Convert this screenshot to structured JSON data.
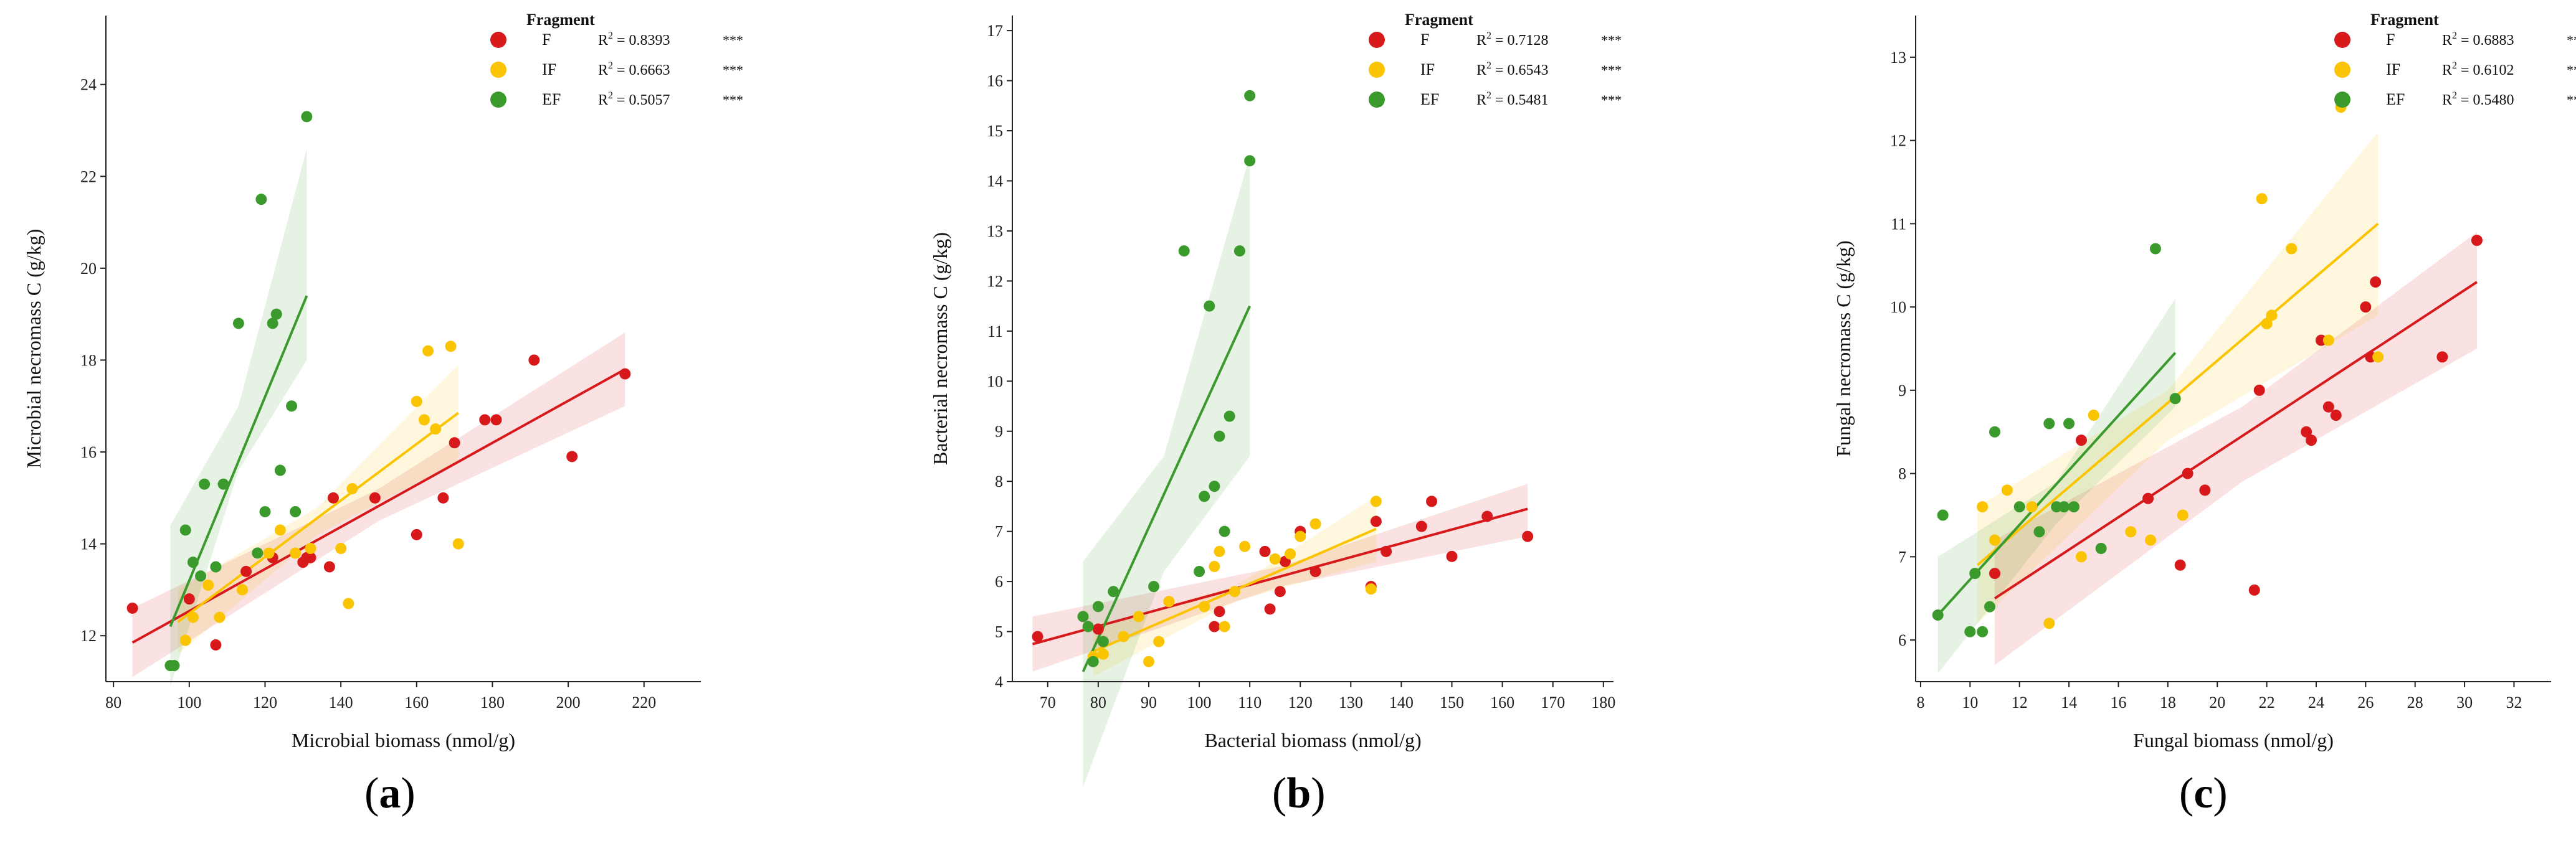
{
  "colors": {
    "F": "#d7191c",
    "IF": "#fbc400",
    "EF": "#3a9a2c"
  },
  "panel_labels": [
    {
      "open": "(",
      "letter": "a",
      "close": ")"
    },
    {
      "open": "(",
      "letter": "b",
      "close": ")"
    },
    {
      "open": "(",
      "letter": "c",
      "close": ")"
    }
  ],
  "chart_data": [
    {
      "type": "scatter",
      "title": "",
      "xlabel": "Microbial biomass (nmol/g)",
      "ylabel": "Microbial necromass C (g/kg)",
      "xlim": [
        78,
        235
      ],
      "ylim": [
        11,
        25.5
      ],
      "xticks": [
        80,
        100,
        120,
        140,
        160,
        180,
        200,
        220
      ],
      "yticks": [
        12,
        14,
        16,
        18,
        20,
        22,
        24
      ],
      "legend_title": "Fragment",
      "legend_position": "top-right",
      "series": [
        {
          "name": "F",
          "r2_prefix": "R",
          "r2_value": " = 0.8393",
          "sig": "***",
          "fit": {
            "x": [
              85,
              215
            ],
            "y": [
              11.85,
              17.8
            ]
          },
          "band": {
            "x": [
              85,
              150,
              215
            ],
            "upper": [
              12.6,
              15.2,
              18.6
            ],
            "lower": [
              11.1,
              14.5,
              17.0
            ]
          },
          "x": [
            85,
            100,
            107,
            115,
            122,
            130,
            131,
            132,
            137,
            138,
            149,
            160,
            167,
            170,
            178,
            181,
            191,
            201,
            215
          ],
          "y": [
            12.6,
            12.8,
            11.8,
            13.4,
            13.7,
            13.6,
            13.7,
            13.7,
            13.5,
            15.0,
            15.0,
            14.2,
            15.0,
            16.2,
            16.7,
            16.7,
            18.0,
            15.9,
            17.7
          ]
        },
        {
          "name": "IF",
          "r2_prefix": "R",
          "r2_value": " = 0.6663",
          "sig": "***",
          "fit": {
            "x": [
              97,
              171
            ],
            "y": [
              12.3,
              16.85
            ]
          },
          "band": {
            "x": [
              97,
              134,
              171
            ],
            "upper": [
              13.0,
              14.8,
              17.9
            ],
            "lower": [
              11.6,
              14.2,
              15.8
            ]
          },
          "x": [
            99,
            101,
            105,
            108,
            114,
            121,
            124,
            128,
            132,
            140,
            142,
            143,
            160,
            162,
            163,
            165,
            169,
            171
          ],
          "y": [
            11.9,
            12.4,
            13.1,
            12.4,
            13.0,
            13.8,
            14.3,
            13.8,
            13.9,
            13.9,
            12.7,
            15.2,
            17.1,
            16.7,
            18.2,
            16.5,
            18.3,
            14.0
          ]
        },
        {
          "name": "EF",
          "r2_prefix": "R",
          "r2_value": " = 0.5057",
          "sig": "***",
          "fit": {
            "x": [
              95,
              131
            ],
            "y": [
              12.2,
              19.4
            ]
          },
          "band": {
            "x": [
              95,
              113,
              131
            ],
            "upper": [
              14.4,
              17.0,
              22.6
            ],
            "lower": [
              10.9,
              15.6,
              18.0
            ]
          },
          "x": [
            95,
            96,
            99,
            101,
            103,
            104,
            107,
            109,
            113,
            118,
            119,
            120,
            122,
            123,
            124,
            127,
            128,
            131
          ],
          "y": [
            11.35,
            11.35,
            14.3,
            13.6,
            13.3,
            15.3,
            13.5,
            15.3,
            18.8,
            13.8,
            21.5,
            14.7,
            18.8,
            19.0,
            15.6,
            17.0,
            14.7,
            23.3
          ]
        }
      ]
    },
    {
      "type": "scatter",
      "title": "",
      "xlabel": "Bacterial biomass (nmol/g)",
      "ylabel": "Bacterial necromass C (g/kg)",
      "xlim": [
        63,
        182
      ],
      "ylim": [
        4,
        17.3
      ],
      "xticks": [
        70,
        80,
        90,
        100,
        110,
        120,
        130,
        140,
        150,
        160,
        170,
        180
      ],
      "yticks": [
        4,
        5,
        6,
        7,
        8,
        9,
        10,
        11,
        12,
        13,
        14,
        15,
        16,
        17
      ],
      "legend_title": "Fragment",
      "legend_position": "top-right",
      "series": [
        {
          "name": "F",
          "r2_prefix": "R",
          "r2_value": " = 0.7128",
          "sig": "***",
          "fit": {
            "x": [
              67,
              165
            ],
            "y": [
              4.75,
              7.45
            ]
          },
          "band": {
            "x": [
              67,
              116,
              165
            ],
            "upper": [
              5.3,
              6.3,
              7.95
            ],
            "lower": [
              4.2,
              5.9,
              6.9
            ]
          },
          "x": [
            68,
            80,
            103,
            104,
            113,
            114,
            116,
            117,
            120,
            123,
            134,
            135,
            137,
            144,
            146,
            150,
            157,
            165
          ],
          "y": [
            4.9,
            5.05,
            5.1,
            5.4,
            6.6,
            5.45,
            5.8,
            6.4,
            7.0,
            6.2,
            5.9,
            7.2,
            6.6,
            7.1,
            7.6,
            6.5,
            7.3,
            6.9
          ]
        },
        {
          "name": "IF",
          "r2_prefix": "R",
          "r2_value": " = 0.6543",
          "sig": "***",
          "fit": {
            "x": [
              79,
              135
            ],
            "y": [
              4.6,
              7.05
            ]
          },
          "band": {
            "x": [
              79,
              107,
              135
            ],
            "upper": [
              5.1,
              5.9,
              7.7
            ],
            "lower": [
              4.1,
              5.6,
              6.4
            ]
          },
          "x": [
            79,
            81,
            85,
            88,
            90,
            92,
            94,
            101,
            103,
            104,
            105,
            107,
            109,
            115,
            118,
            120,
            123,
            134,
            135
          ],
          "y": [
            4.5,
            4.55,
            4.9,
            5.3,
            4.4,
            4.8,
            5.6,
            5.5,
            6.3,
            6.6,
            5.1,
            5.8,
            6.7,
            6.45,
            6.55,
            6.9,
            7.15,
            5.85,
            7.6
          ]
        },
        {
          "name": "EF",
          "r2_prefix": "R",
          "r2_value": " = 0.5481",
          "sig": "***",
          "fit": {
            "x": [
              77,
              110
            ],
            "y": [
              4.2,
              11.5
            ]
          },
          "band": {
            "x": [
              77,
              93,
              110
            ],
            "upper": [
              6.4,
              8.5,
              14.5
            ],
            "lower": [
              1.9,
              6.2,
              8.5
            ]
          },
          "x": [
            77,
            78,
            79,
            80,
            81,
            83,
            91,
            97,
            100,
            101,
            102,
            103,
            104,
            105,
            106,
            108,
            110,
            110
          ],
          "y": [
            5.3,
            5.1,
            4.4,
            5.5,
            4.8,
            5.8,
            5.9,
            12.6,
            6.2,
            7.7,
            11.5,
            7.9,
            8.9,
            7.0,
            9.3,
            12.6,
            15.7,
            14.4
          ]
        }
      ]
    },
    {
      "type": "scatter",
      "title": "",
      "xlabel": "Fungal biomass (nmol/g)",
      "ylabel": "Fungal necromass C (g/kg)",
      "xlim": [
        7.8,
        33.5
      ],
      "ylim": [
        5.5,
        13.5
      ],
      "xticks": [
        8,
        10,
        12,
        14,
        16,
        18,
        20,
        22,
        24,
        26,
        28,
        30,
        32
      ],
      "yticks": [
        6,
        7,
        8,
        9,
        10,
        11,
        12,
        13
      ],
      "legend_title": "Fragment",
      "legend_position": "top-right",
      "series": [
        {
          "name": "F",
          "r2_prefix": "R",
          "r2_value": " = 0.6883",
          "sig": "***",
          "fit": {
            "x": [
              11,
              30.5
            ],
            "y": [
              6.5,
              10.3
            ]
          },
          "band": {
            "x": [
              11,
              21,
              30.5
            ],
            "upper": [
              7.2,
              8.8,
              10.9
            ],
            "lower": [
              5.7,
              7.9,
              9.5
            ]
          },
          "x": [
            11,
            14.5,
            17.2,
            18.5,
            18.8,
            19.5,
            21.5,
            21.7,
            23.6,
            23.8,
            24.2,
            24.5,
            24.8,
            26.0,
            26.2,
            26.4,
            29.1,
            30.5
          ],
          "y": [
            6.8,
            8.4,
            7.7,
            6.9,
            8.0,
            7.8,
            6.6,
            9.0,
            8.5,
            8.4,
            9.6,
            8.8,
            8.7,
            10.0,
            9.4,
            10.3,
            9.4,
            10.8
          ]
        },
        {
          "name": "IF",
          "r2_prefix": "R",
          "r2_value": " = 0.6102",
          "sig": "***",
          "fit": {
            "x": [
              10.3,
              26.5
            ],
            "y": [
              6.9,
              11.0
            ]
          },
          "band": {
            "x": [
              10.3,
              18,
              26.5
            ],
            "upper": [
              7.6,
              9.0,
              12.1
            ],
            "lower": [
              6.2,
              8.4,
              9.9
            ]
          },
          "x": [
            10.5,
            11,
            11.5,
            12.5,
            13.2,
            14.5,
            15,
            16.5,
            17.3,
            18.6,
            21.8,
            22.0,
            22.2,
            23.0,
            24.5,
            25.0,
            26.5
          ],
          "y": [
            7.6,
            7.2,
            7.8,
            7.6,
            6.2,
            7.0,
            8.7,
            7.3,
            7.2,
            7.5,
            11.3,
            9.8,
            9.9,
            10.7,
            9.6,
            12.4,
            9.4
          ]
        },
        {
          "name": "EF",
          "r2_prefix": "R",
          "r2_value": " = 0.5480",
          "sig": "***",
          "fit": {
            "x": [
              8.7,
              18.3
            ],
            "y": [
              6.3,
              9.45
            ]
          },
          "band": {
            "x": [
              8.7,
              13.5,
              18.3
            ],
            "upper": [
              7.0,
              7.9,
              10.1
            ],
            "lower": [
              5.6,
              7.4,
              8.8
            ]
          },
          "x": [
            8.7,
            8.9,
            10,
            10.2,
            10.5,
            10.8,
            11.0,
            12.0,
            12.8,
            13.2,
            13.5,
            13.8,
            14.0,
            14.2,
            15.3,
            17.5,
            18.3
          ],
          "y": [
            6.3,
            7.5,
            6.1,
            6.8,
            6.1,
            6.4,
            8.5,
            7.6,
            7.3,
            8.6,
            7.6,
            7.6,
            8.6,
            7.6,
            7.1,
            10.7,
            8.9
          ]
        }
      ]
    }
  ]
}
